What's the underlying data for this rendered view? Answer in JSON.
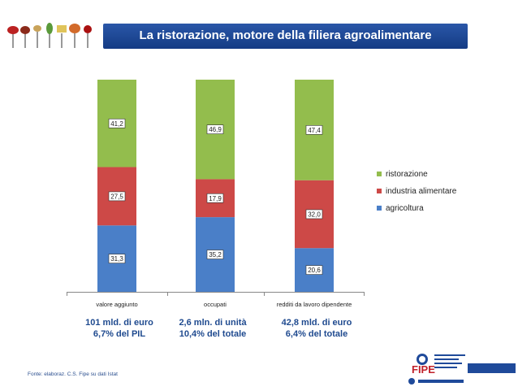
{
  "header": {
    "title": "La ristorazione, motore della filiera agroalimentare"
  },
  "chart_data": {
    "type": "bar",
    "stacked": true,
    "categories": [
      "valore aggiunto",
      "occupati",
      "redditi da lavoro dipendente"
    ],
    "series": [
      {
        "name": "agricoltura",
        "values": [
          31.3,
          35.2,
          20.6
        ],
        "labels": [
          "31,3",
          "35,2",
          "20,6"
        ],
        "color": "#4a7fc8"
      },
      {
        "name": "industria alimentare",
        "values": [
          27.5,
          17.9,
          32.0
        ],
        "labels": [
          "27,5",
          "17,9",
          "32,0"
        ],
        "color": "#cd4947"
      },
      {
        "name": "ristorazione",
        "values": [
          41.2,
          46.9,
          47.4
        ],
        "labels": [
          "41,2",
          "46,9",
          "47,4"
        ],
        "color": "#93bd4d"
      }
    ],
    "legend_order": [
      "ristorazione",
      "industria alimentare",
      "agricoltura"
    ],
    "legend_position": "right",
    "ylim": [
      0,
      100
    ],
    "grid": false
  },
  "subtitles": [
    {
      "line1": "101 mld. di euro",
      "line2": "6,7% del PIL"
    },
    {
      "line1": "2,6 mln. di unità",
      "line2": "10,4% del totale"
    },
    {
      "line1": "42,8 mld. di euro",
      "line2": "6,4% del totale"
    }
  ],
  "source": "Fonte: elaboraz. C.S. Fipe su dati Istat",
  "logo": {
    "brand": "FIPE"
  }
}
